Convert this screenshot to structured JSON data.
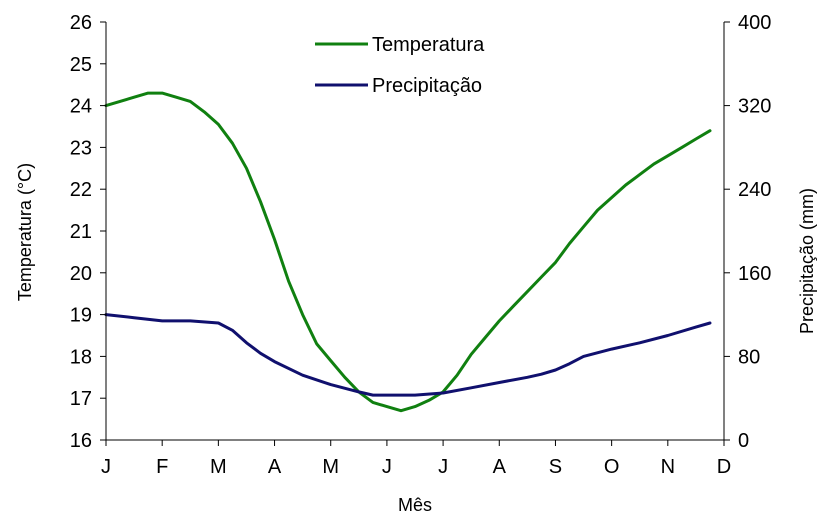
{
  "chart_data": {
    "type": "line",
    "xlabel": "Mês",
    "ylabel_left": "Temperatura (°C)",
    "ylabel_right": "Precipitação (mm)",
    "x_ticks": [
      "J",
      "F",
      "M",
      "A",
      "M",
      "J",
      "J",
      "A",
      "S",
      "O",
      "N",
      "D"
    ],
    "y_left": {
      "min": 16,
      "max": 26,
      "ticks": [
        "16",
        "17",
        "18",
        "19",
        "20",
        "21",
        "22",
        "23",
        "24",
        "25",
        "26"
      ]
    },
    "y_right": {
      "min": 0,
      "max": 400,
      "ticks": [
        "0",
        "80",
        "160",
        "240",
        "320",
        "400"
      ]
    },
    "legend_position": "top-center",
    "grid": false,
    "series": [
      {
        "name": "Temperatura",
        "axis": "left",
        "color": "#108010",
        "points": [
          [
            0,
            24.0
          ],
          [
            0.25,
            24.1
          ],
          [
            0.5,
            24.2
          ],
          [
            0.75,
            24.3
          ],
          [
            1.0,
            24.3
          ],
          [
            1.25,
            24.2
          ],
          [
            1.5,
            24.1
          ],
          [
            1.75,
            23.85
          ],
          [
            2.0,
            23.55
          ],
          [
            2.25,
            23.1
          ],
          [
            2.5,
            22.5
          ],
          [
            2.75,
            21.7
          ],
          [
            3.0,
            20.8
          ],
          [
            3.25,
            19.8
          ],
          [
            3.5,
            19.0
          ],
          [
            3.75,
            18.3
          ],
          [
            4.0,
            17.9
          ],
          [
            4.25,
            17.5
          ],
          [
            4.5,
            17.15
          ],
          [
            4.75,
            16.9
          ],
          [
            5.0,
            16.8
          ],
          [
            5.25,
            16.7
          ],
          [
            5.5,
            16.8
          ],
          [
            5.75,
            16.95
          ],
          [
            6.0,
            17.15
          ],
          [
            6.25,
            17.55
          ],
          [
            6.5,
            18.05
          ],
          [
            6.75,
            18.45
          ],
          [
            7.0,
            18.85
          ],
          [
            7.25,
            19.2
          ],
          [
            7.5,
            19.55
          ],
          [
            7.75,
            19.9
          ],
          [
            8.0,
            20.25
          ],
          [
            8.25,
            20.7
          ],
          [
            8.5,
            21.1
          ],
          [
            8.75,
            21.5
          ],
          [
            9.0,
            21.8
          ],
          [
            9.25,
            22.1
          ],
          [
            9.5,
            22.35
          ],
          [
            9.75,
            22.6
          ],
          [
            10.0,
            22.8
          ],
          [
            10.25,
            23.0
          ],
          [
            10.5,
            23.2
          ],
          [
            10.75,
            23.4
          ]
        ]
      },
      {
        "name": "Precipitação",
        "axis": "right",
        "color": "#10106e",
        "points": [
          [
            0,
            120
          ],
          [
            0.5,
            117
          ],
          [
            1.0,
            114
          ],
          [
            1.5,
            114
          ],
          [
            2.0,
            112
          ],
          [
            2.25,
            105
          ],
          [
            2.5,
            93
          ],
          [
            2.75,
            83
          ],
          [
            3.0,
            75
          ],
          [
            3.5,
            62
          ],
          [
            4.0,
            53
          ],
          [
            4.5,
            46
          ],
          [
            4.75,
            43
          ],
          [
            5.0,
            43
          ],
          [
            5.5,
            43
          ],
          [
            6.0,
            45
          ],
          [
            6.5,
            50
          ],
          [
            7.0,
            55
          ],
          [
            7.5,
            60
          ],
          [
            7.75,
            63
          ],
          [
            8.0,
            67
          ],
          [
            8.25,
            73
          ],
          [
            8.5,
            80
          ],
          [
            9.0,
            87
          ],
          [
            9.5,
            93
          ],
          [
            10.0,
            100
          ],
          [
            10.5,
            108
          ],
          [
            10.75,
            112
          ]
        ]
      }
    ]
  }
}
